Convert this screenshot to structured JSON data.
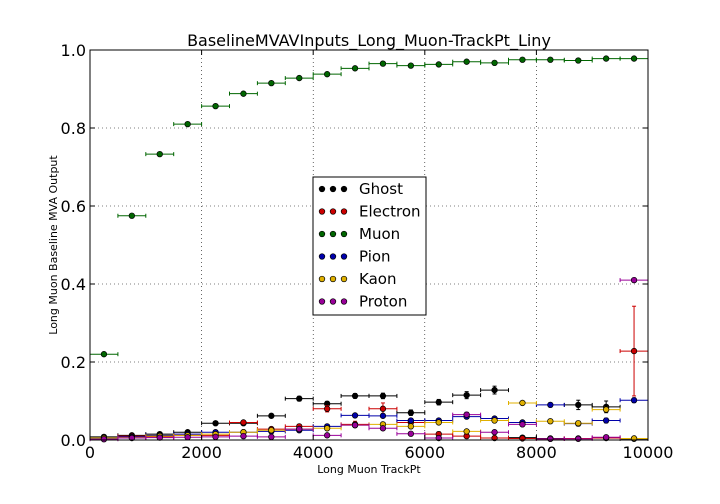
{
  "chart_data": {
    "type": "scatter",
    "title": "BaselineMVAVInputs_Long_Muon-TrackPt_Liny",
    "xlabel": "Long Muon TrackPt",
    "ylabel": "Long Muon Baseline MVA Output",
    "xlim": [
      0,
      10000
    ],
    "ylim": [
      0,
      1.0
    ],
    "xticks": [
      0,
      2000,
      4000,
      6000,
      8000,
      10000
    ],
    "xtick_labels": [
      "0",
      "2000",
      "4000",
      "6000",
      "8000",
      "10000"
    ],
    "yticks": [
      0.0,
      0.2,
      0.4,
      0.6,
      0.8,
      1.0
    ],
    "ytick_labels": [
      "0.0",
      "0.2",
      "0.4",
      "0.6",
      "0.8",
      "1.0"
    ],
    "grid": true,
    "legend_position": "center",
    "bin_half_width": 250,
    "series": [
      {
        "name": "Ghost",
        "color": "#000000",
        "x": [
          250,
          750,
          1250,
          1750,
          2250,
          2750,
          3250,
          3750,
          4250,
          4750,
          5250,
          5750,
          6250,
          6750,
          7250,
          7750,
          8250,
          8750,
          9250,
          9750
        ],
        "y": [
          0.008,
          0.012,
          0.015,
          0.02,
          0.043,
          0.043,
          0.062,
          0.106,
          0.093,
          0.113,
          0.113,
          0.07,
          0.097,
          0.115,
          0.128,
          0.006,
          0.004,
          0.09,
          0.085,
          0.003
        ],
        "err": [
          0.002,
          0.002,
          0.002,
          0.003,
          0.004,
          0.004,
          0.005,
          0.006,
          0.006,
          0.006,
          0.007,
          0.007,
          0.007,
          0.009,
          0.01,
          0.003,
          0.003,
          0.012,
          0.015,
          0.003
        ]
      },
      {
        "name": "Electron",
        "color": "#cc0000",
        "x": [
          250,
          750,
          1250,
          1750,
          2250,
          2750,
          3250,
          3750,
          4250,
          4750,
          5250,
          5750,
          6250,
          6750,
          7250,
          7750,
          8250,
          8750,
          9250,
          9750
        ],
        "y": [
          0.003,
          0.01,
          0.008,
          0.012,
          0.012,
          0.045,
          0.028,
          0.035,
          0.08,
          0.04,
          0.08,
          0.045,
          0.015,
          0.01,
          0.005,
          0.004,
          0.003,
          0.004,
          0.005,
          0.228
        ],
        "err": [
          0.001,
          0.002,
          0.002,
          0.002,
          0.003,
          0.004,
          0.004,
          0.005,
          0.008,
          0.008,
          0.015,
          0.01,
          0.006,
          0.005,
          0.004,
          0.003,
          0.003,
          0.004,
          0.005,
          0.115
        ]
      },
      {
        "name": "Muon",
        "color": "#006600",
        "x": [
          250,
          750,
          1250,
          1750,
          2250,
          2750,
          3250,
          3750,
          4250,
          4750,
          5250,
          5750,
          6250,
          6750,
          7250,
          7750,
          8250,
          8750,
          9250,
          9750
        ],
        "y": [
          0.22,
          0.575,
          0.733,
          0.81,
          0.856,
          0.888,
          0.915,
          0.928,
          0.938,
          0.953,
          0.965,
          0.96,
          0.963,
          0.97,
          0.967,
          0.975,
          0.975,
          0.973,
          0.978,
          0.978
        ],
        "err": [
          0.003,
          0.003,
          0.003,
          0.003,
          0.003,
          0.003,
          0.003,
          0.003,
          0.003,
          0.003,
          0.003,
          0.003,
          0.003,
          0.003,
          0.003,
          0.003,
          0.003,
          0.003,
          0.003,
          0.003
        ]
      },
      {
        "name": "Pion",
        "color": "#0000aa",
        "x": [
          250,
          750,
          1250,
          1750,
          2250,
          2750,
          3250,
          3750,
          4250,
          4750,
          5250,
          5750,
          6250,
          6750,
          7250,
          7750,
          8250,
          8750,
          9250,
          9750
        ],
        "y": [
          0.004,
          0.008,
          0.012,
          0.015,
          0.02,
          0.02,
          0.022,
          0.025,
          0.035,
          0.063,
          0.062,
          0.05,
          0.05,
          0.06,
          0.055,
          0.045,
          0.09,
          0.042,
          0.05,
          0.102
        ],
        "err": [
          0.001,
          0.001,
          0.002,
          0.002,
          0.002,
          0.002,
          0.002,
          0.003,
          0.003,
          0.004,
          0.004,
          0.004,
          0.004,
          0.005,
          0.005,
          0.005,
          0.005,
          0.006,
          0.006,
          0.006
        ]
      },
      {
        "name": "Kaon",
        "color": "#e0b000",
        "x": [
          250,
          750,
          1250,
          1750,
          2250,
          2750,
          3250,
          3750,
          4250,
          4750,
          5250,
          5750,
          6250,
          6750,
          7250,
          7750,
          8250,
          8750,
          9250,
          9750
        ],
        "y": [
          0.005,
          0.006,
          0.01,
          0.012,
          0.015,
          0.02,
          0.025,
          0.028,
          0.03,
          0.038,
          0.04,
          0.035,
          0.045,
          0.022,
          0.05,
          0.095,
          0.048,
          0.043,
          0.078,
          0.004
        ],
        "err": [
          0.001,
          0.001,
          0.001,
          0.002,
          0.002,
          0.002,
          0.002,
          0.003,
          0.003,
          0.003,
          0.004,
          0.004,
          0.004,
          0.004,
          0.004,
          0.004,
          0.005,
          0.005,
          0.006,
          0.003
        ]
      },
      {
        "name": "Proton",
        "color": "#990099",
        "x": [
          250,
          750,
          1250,
          1750,
          2250,
          2750,
          3250,
          3750,
          4250,
          4750,
          5250,
          5750,
          6250,
          6750,
          7250,
          7750,
          8250,
          8750,
          9250,
          9750
        ],
        "y": [
          0.002,
          0.005,
          0.006,
          0.007,
          0.008,
          0.01,
          0.008,
          0.028,
          0.012,
          0.038,
          0.03,
          0.016,
          0.005,
          0.065,
          0.02,
          0.04,
          0.003,
          0.003,
          0.007,
          0.41
        ],
        "err": [
          0.001,
          0.001,
          0.001,
          0.001,
          0.001,
          0.002,
          0.002,
          0.003,
          0.002,
          0.004,
          0.004,
          0.003,
          0.002,
          0.006,
          0.003,
          0.004,
          0.002,
          0.002,
          0.003,
          0.004
        ]
      }
    ]
  }
}
